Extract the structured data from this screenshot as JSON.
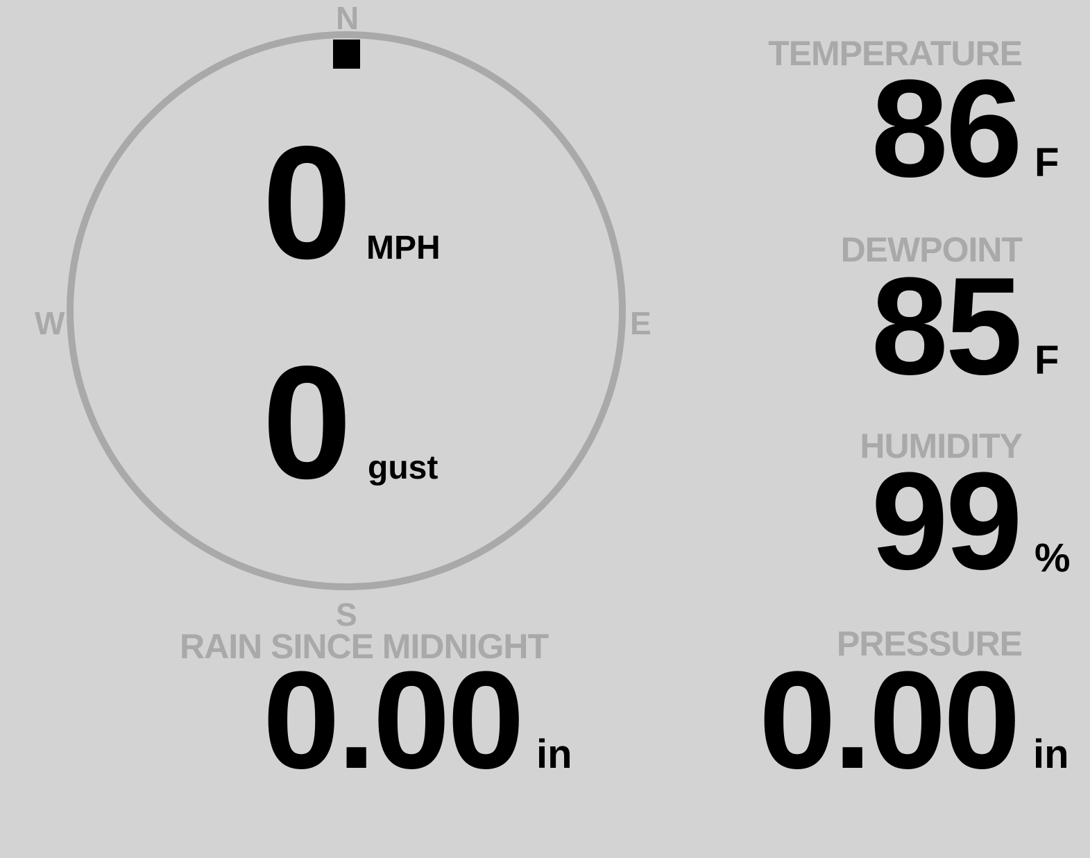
{
  "colors": {
    "background": "#d3d3d3",
    "label": "#a9a9a9",
    "value": "#000000"
  },
  "compass": {
    "north": "N",
    "south": "S",
    "east": "E",
    "west": "W",
    "direction_deg": 0
  },
  "wind": {
    "speed": "0",
    "speed_unit": "MPH",
    "gust": "0",
    "gust_unit": "gust"
  },
  "temperature": {
    "label": "TEMPERATURE",
    "value": "86",
    "unit": "F"
  },
  "dewpoint": {
    "label": "DEWPOINT",
    "value": "85",
    "unit": "F"
  },
  "humidity": {
    "label": "HUMIDITY",
    "value": "99",
    "unit": "%"
  },
  "rain": {
    "label": "RAIN SINCE MIDNIGHT",
    "value": "0.00",
    "unit": "in"
  },
  "pressure": {
    "label": "PRESSURE",
    "value": "0.00",
    "unit": "in"
  }
}
